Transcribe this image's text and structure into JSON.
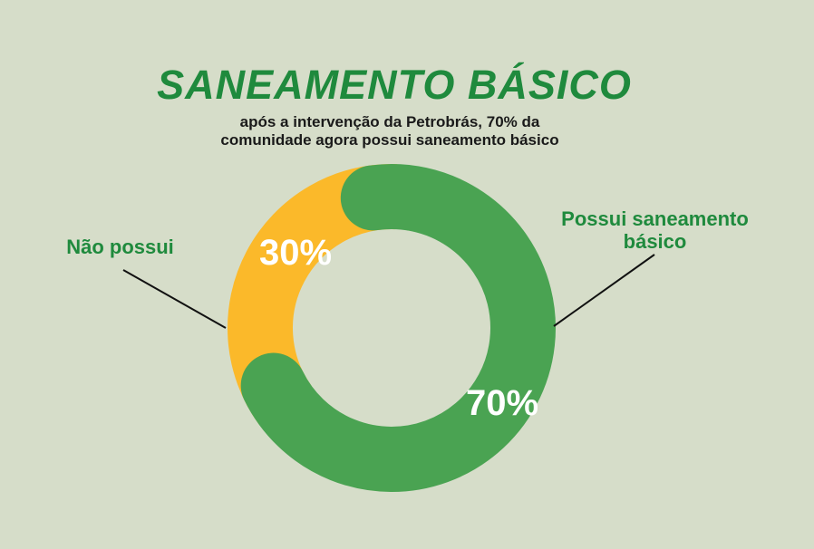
{
  "title": "SANEAMENTO BÁSICO",
  "subtitle": {
    "line1": "após a intervenção da Petrobrás, 70% da",
    "line2": "comunidade agora possui saneamento básico"
  },
  "colors": {
    "green": "#4aa352",
    "yellow": "#fbb92a",
    "title_green": "#1f8a3d",
    "background": "#d6ddc9"
  },
  "chart_data": {
    "type": "pie",
    "title": "SANEAMENTO BÁSICO",
    "slices": [
      {
        "label": "Não possui",
        "value": 30,
        "display": "30%",
        "color": "#fbb92a"
      },
      {
        "label": "Possui saneamento básico",
        "value": 70,
        "display": "70%",
        "color": "#4aa352"
      }
    ],
    "callouts": {
      "left": {
        "text": "Não possui"
      },
      "right": {
        "line1": "Possui saneamento",
        "line2": "básico"
      }
    }
  }
}
